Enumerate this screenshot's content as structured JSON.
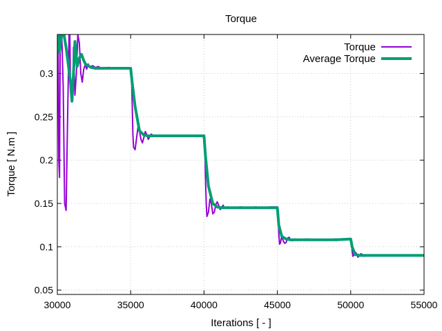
{
  "chart_data": {
    "type": "line",
    "title": "Torque",
    "xlabel": "Iterations [ - ]",
    "ylabel": "Torque [ N.m ]",
    "xlim": [
      30000,
      55000
    ],
    "ylim": [
      0.045,
      0.345
    ],
    "xticks": [
      30000,
      35000,
      40000,
      45000,
      50000,
      55000
    ],
    "yticks": [
      0.05,
      0.1,
      0.15,
      0.2,
      0.25,
      0.3
    ],
    "ytick_labels": [
      "0.05",
      "0.1",
      "0.15",
      "0.2",
      "0.25",
      "0.3"
    ],
    "grid": true,
    "legend_position": "top-right",
    "series": [
      {
        "name": "Torque",
        "color": "#9400d3",
        "x": [
          29850,
          29900,
          29950,
          30000,
          30050,
          30100,
          30150,
          30200,
          30300,
          30400,
          30500,
          30600,
          30700,
          30800,
          30850,
          30900,
          30950,
          31000,
          31050,
          31100,
          31200,
          31300,
          31400,
          31500,
          31600,
          31700,
          31800,
          31900,
          32000,
          32100,
          32200,
          32400,
          32600,
          32800,
          33000,
          33500,
          34000,
          34500,
          35000,
          35050,
          35100,
          35150,
          35200,
          35300,
          35400,
          35500,
          35600,
          35700,
          35800,
          35900,
          36000,
          36100,
          36200,
          36300,
          36400,
          36500,
          36700,
          37000,
          37500,
          38000,
          38500,
          39000,
          39500,
          40000,
          40050,
          40100,
          40150,
          40200,
          40300,
          40400,
          40500,
          40600,
          40700,
          40800,
          40900,
          41000,
          41100,
          41200,
          41300,
          41400,
          41600,
          42000,
          42500,
          43000,
          43500,
          44000,
          44500,
          45000,
          45050,
          45100,
          45150,
          45200,
          45300,
          45400,
          45500,
          45600,
          45700,
          45800,
          45900,
          46000,
          46200,
          46500,
          47000,
          48000,
          49000,
          50000,
          50050,
          50100,
          50150,
          50200,
          50300,
          50400,
          50500,
          50600,
          50700,
          50800,
          50900,
          51000,
          51200,
          51500,
          52000,
          53000,
          54000,
          55000
        ],
        "y": [
          0.345,
          0.07,
          0.05,
          0.345,
          0.345,
          0.2,
          0.18,
          0.345,
          0.345,
          0.285,
          0.15,
          0.142,
          0.25,
          0.345,
          0.345,
          0.28,
          0.27,
          0.275,
          0.27,
          0.33,
          0.275,
          0.3,
          0.345,
          0.335,
          0.3,
          0.29,
          0.305,
          0.31,
          0.305,
          0.311,
          0.307,
          0.309,
          0.307,
          0.308,
          0.306,
          0.307,
          0.306,
          0.306,
          0.306,
          0.305,
          0.27,
          0.23,
          0.215,
          0.212,
          0.225,
          0.238,
          0.234,
          0.224,
          0.22,
          0.226,
          0.233,
          0.229,
          0.224,
          0.227,
          0.23,
          0.229,
          0.228,
          0.228,
          0.228,
          0.228,
          0.228,
          0.228,
          0.228,
          0.228,
          0.22,
          0.18,
          0.15,
          0.135,
          0.14,
          0.155,
          0.15,
          0.138,
          0.14,
          0.148,
          0.152,
          0.148,
          0.143,
          0.145,
          0.148,
          0.145,
          0.146,
          0.145,
          0.146,
          0.145,
          0.146,
          0.145,
          0.146,
          0.146,
          0.14,
          0.115,
          0.103,
          0.104,
          0.112,
          0.107,
          0.104,
          0.105,
          0.11,
          0.111,
          0.108,
          0.107,
          0.109,
          0.108,
          0.109,
          0.108,
          0.109,
          0.109,
          0.105,
          0.095,
          0.089,
          0.09,
          0.094,
          0.092,
          0.088,
          0.09,
          0.092,
          0.091,
          0.089,
          0.09,
          0.09,
          0.09,
          0.09,
          0.09,
          0.09,
          0.09
        ]
      },
      {
        "name": "Average Torque",
        "color": "#009e73",
        "x": [
          29850,
          29950,
          30050,
          30150,
          30300,
          30450,
          30600,
          30750,
          30900,
          31000,
          31100,
          31200,
          31350,
          31500,
          31650,
          31800,
          31950,
          32100,
          32300,
          32600,
          33000,
          34000,
          35000,
          35100,
          35300,
          35600,
          35900,
          36200,
          36600,
          37000,
          38000,
          39000,
          40000,
          40100,
          40300,
          40600,
          40900,
          41200,
          41600,
          42000,
          43000,
          44000,
          45000,
          45100,
          45300,
          45600,
          45900,
          46300,
          47000,
          48000,
          49000,
          50000,
          50100,
          50300,
          50600,
          51000,
          52000,
          53000,
          54000,
          55000
        ],
        "y": [
          0.075,
          0.345,
          0.345,
          0.325,
          0.345,
          0.345,
          0.33,
          0.31,
          0.29,
          0.268,
          0.3,
          0.337,
          0.308,
          0.318,
          0.322,
          0.315,
          0.31,
          0.309,
          0.307,
          0.306,
          0.306,
          0.306,
          0.306,
          0.29,
          0.262,
          0.234,
          0.229,
          0.228,
          0.228,
          0.228,
          0.228,
          0.228,
          0.228,
          0.205,
          0.17,
          0.15,
          0.146,
          0.145,
          0.145,
          0.145,
          0.145,
          0.145,
          0.145,
          0.125,
          0.112,
          0.109,
          0.108,
          0.108,
          0.108,
          0.108,
          0.108,
          0.109,
          0.1,
          0.091,
          0.09,
          0.09,
          0.09,
          0.09,
          0.09,
          0.09
        ]
      }
    ]
  }
}
